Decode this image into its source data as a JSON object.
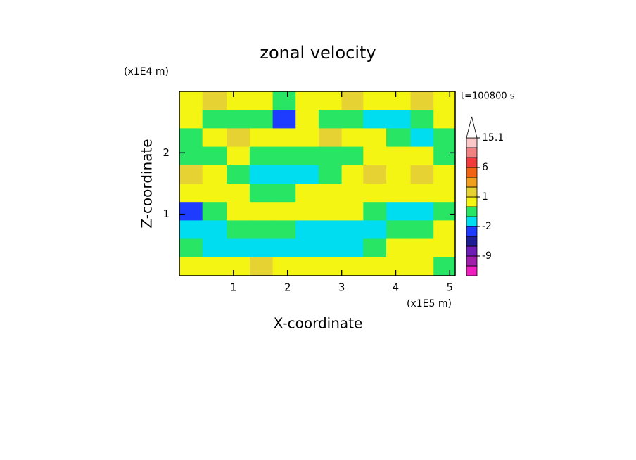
{
  "chart_data": {
    "type": "contour",
    "title": "zonal velocity",
    "x_label": "X-coordinate",
    "y_label": "Z-coordinate",
    "x_unit": "(x1E5 m)",
    "y_unit": "(x1E4 m)",
    "annotation": "t=100800 s",
    "xlim": [
      0,
      5.1
    ],
    "ylim": [
      0,
      3
    ],
    "xticks": [
      1,
      2,
      3,
      4,
      5
    ],
    "yticks": [
      1,
      2
    ],
    "x": [
      0.2,
      0.65,
      1.1,
      1.5,
      1.95,
      2.35,
      2.8,
      3.2,
      3.6,
      4.05,
      4.5,
      4.9
    ],
    "y": [
      2.85,
      2.55,
      2.25,
      1.95,
      1.65,
      1.35,
      1.05,
      0.75,
      0.45,
      0.15
    ],
    "z": [
      [
        0.5,
        1.5,
        0.5,
        0.5,
        -0.5,
        0.5,
        0.5,
        1.5,
        0.5,
        0.5,
        1.5,
        0.5
      ],
      [
        0.5,
        -0.5,
        -0.5,
        -0.5,
        -3,
        0.5,
        -0.5,
        -0.5,
        -1.5,
        -1.5,
        -0.5,
        0.5
      ],
      [
        -0.5,
        0.5,
        1.5,
        0.5,
        0.5,
        0.5,
        1.5,
        0.5,
        0.5,
        -0.5,
        -1.5,
        -0.5
      ],
      [
        -0.5,
        -0.5,
        0.5,
        -0.5,
        -0.5,
        -0.5,
        -0.5,
        -0.5,
        0.5,
        0.5,
        0.5,
        -0.5
      ],
      [
        1.5,
        0.5,
        -0.5,
        -1.5,
        -1.5,
        -1.5,
        -0.5,
        0.5,
        1.5,
        0.5,
        1.5,
        0.5
      ],
      [
        0.5,
        0.5,
        0.5,
        -0.5,
        -0.5,
        0.5,
        0.5,
        0.5,
        0.5,
        0.5,
        0.5,
        0.5
      ],
      [
        -3,
        -0.5,
        0.5,
        0.5,
        0.5,
        0.5,
        0.5,
        0.5,
        -0.5,
        -1.5,
        -1.5,
        -0.5
      ],
      [
        -1.5,
        -1.5,
        -0.5,
        -0.5,
        -0.5,
        -1.5,
        -1.5,
        -1.5,
        -1.5,
        -0.5,
        -0.5,
        0.5
      ],
      [
        -0.5,
        -1.5,
        -1.5,
        -1.5,
        -1.5,
        -1.5,
        -1.5,
        -1.5,
        -0.5,
        0.5,
        0.5,
        0.5
      ],
      [
        0.5,
        0.5,
        0.5,
        1.5,
        0.5,
        0.5,
        0.5,
        0.5,
        0.5,
        0.5,
        0.5,
        -0.5
      ]
    ],
    "colorbar": {
      "levels": [
        -15,
        -12,
        -9,
        -6,
        -4,
        -2,
        -1,
        0,
        1,
        2,
        4,
        6,
        9,
        12,
        15.1
      ],
      "colors": [
        "#f01ebe",
        "#a01eaa",
        "#6e1eb4",
        "#1e1e96",
        "#1e3cff",
        "#00dcf0",
        "#28e664",
        "#f5f514",
        "#e6d232",
        "#f0a01e",
        "#f06414",
        "#f03c3c",
        "#f08282",
        "#fac8c8"
      ],
      "over_color": "#ffffff",
      "ticks": [
        -9,
        -2,
        1,
        6,
        15.1
      ]
    }
  }
}
